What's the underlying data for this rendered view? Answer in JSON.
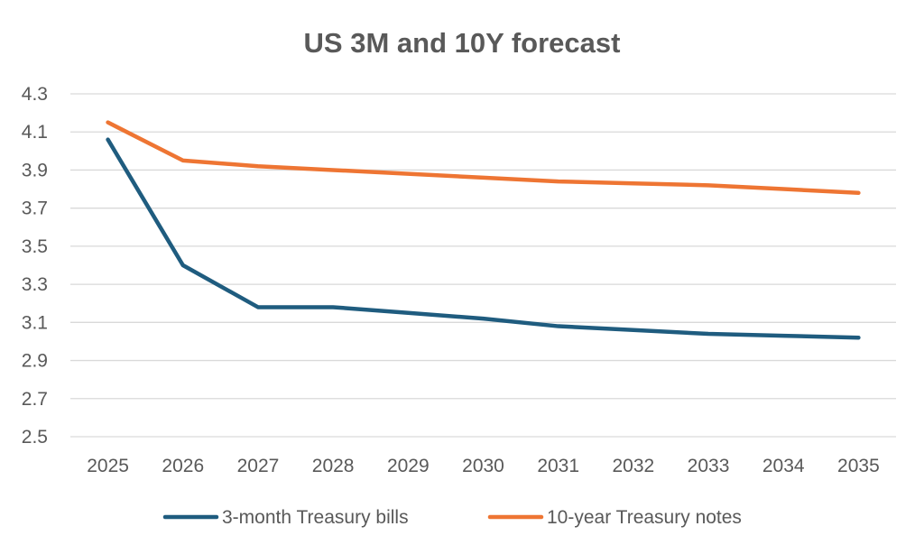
{
  "chart_data": {
    "type": "line",
    "title": "US 3M and 10Y forecast",
    "xlabel": "",
    "ylabel": "",
    "categories": [
      "2025",
      "2026",
      "2027",
      "2028",
      "2029",
      "2030",
      "2031",
      "2032",
      "2033",
      "2034",
      "2035"
    ],
    "ylim": [
      2.5,
      4.3
    ],
    "yticks": [
      "4.3",
      "4.1",
      "3.9",
      "3.7",
      "3.5",
      "3.3",
      "3.1",
      "2.9",
      "2.7",
      "2.5"
    ],
    "grid": true,
    "legend_position": "bottom",
    "series": [
      {
        "name": "3-month Treasury bills",
        "color": "#1f5c7f",
        "values": [
          4.06,
          3.4,
          3.18,
          3.18,
          3.15,
          3.12,
          3.08,
          3.06,
          3.04,
          3.03,
          3.02
        ]
      },
      {
        "name": "10-year Treasury notes",
        "color": "#ee7533",
        "values": [
          4.15,
          3.95,
          3.92,
          3.9,
          3.88,
          3.86,
          3.84,
          3.83,
          3.82,
          3.8,
          3.78
        ]
      }
    ]
  }
}
